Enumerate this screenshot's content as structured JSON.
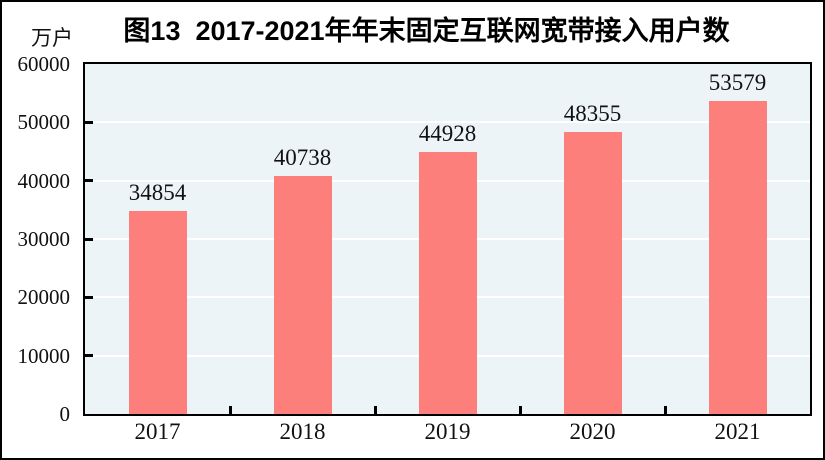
{
  "chart_data": {
    "type": "bar",
    "title": "图13  2017-2021年年末固定互联网宽带接入用户数",
    "unit_label": "万户",
    "categories": [
      "2017",
      "2018",
      "2019",
      "2020",
      "2021"
    ],
    "values": [
      34854,
      40738,
      44928,
      48355,
      53579
    ],
    "value_labels": [
      "34854",
      "40738",
      "44928",
      "48355",
      "53579"
    ],
    "ylim": [
      0,
      60000
    ],
    "y_tick_step": 10000,
    "y_tick_labels": [
      "0",
      "10000",
      "20000",
      "30000",
      "40000",
      "50000",
      "60000"
    ],
    "grid": true,
    "legend": "none",
    "colors": {
      "bar": "#fc7f7c",
      "plot_background": "#edf4f8",
      "gridline": "#ffffff",
      "axis": "#000000",
      "text": "#111111",
      "title_text": "#000000",
      "page_background": "#ffffff",
      "page_border": "#000000"
    }
  }
}
